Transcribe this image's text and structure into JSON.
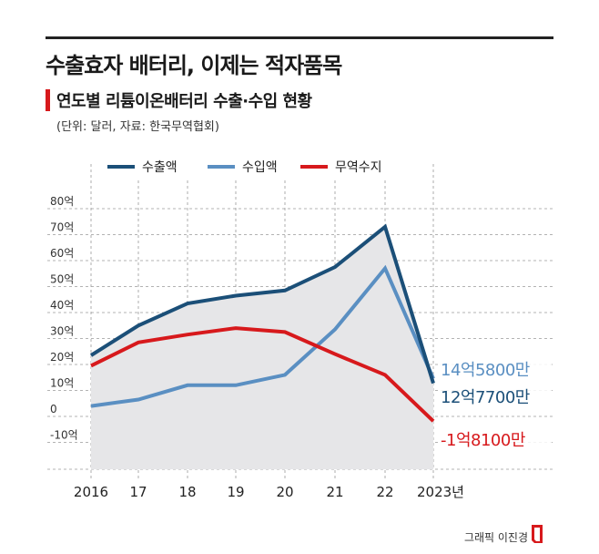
{
  "header": {
    "title": "수출효자 배터리, 이제는 적자품목",
    "subtitle": "연도별 리튬이온배터리 수출·수입 현황",
    "source": "(단위: 달러, 자료: 한국무역협회)"
  },
  "credit": "그래픽 이진경",
  "colors": {
    "export": "#1b4f78",
    "import": "#5a8fc2",
    "balance": "#d7191c",
    "fill": "#e6e6e8"
  },
  "chart_data": {
    "type": "line",
    "title": "연도별 리튬이온배터리 수출·수입 현황",
    "unit": "억 달러",
    "categories": [
      "2016",
      "17",
      "18",
      "19",
      "20",
      "21",
      "22",
      "2023년"
    ],
    "ylim": [
      -10,
      80
    ],
    "yticks": [
      -10,
      0,
      10,
      20,
      30,
      40,
      50,
      60,
      70,
      80
    ],
    "ytick_labels": [
      "-10억",
      "0",
      "10억",
      "20억",
      "30억",
      "40억",
      "50억",
      "60억",
      "70억",
      "80억"
    ],
    "legend_position": "top",
    "series": [
      {
        "name": "수출액",
        "color": "#1b4f78",
        "values": [
          23.5,
          35,
          43.5,
          46.5,
          48.5,
          57.5,
          73,
          12.77
        ]
      },
      {
        "name": "수입액",
        "color": "#5a8fc2",
        "values": [
          4,
          6.5,
          12,
          12,
          16,
          33.5,
          57,
          14.58
        ]
      },
      {
        "name": "무역수지",
        "color": "#d7191c",
        "values": [
          19.5,
          28.5,
          31.5,
          34,
          32.5,
          24,
          16,
          -1.81
        ]
      }
    ],
    "end_labels": [
      {
        "series": "수입액",
        "text": "14억5800만",
        "color": "#5a8fc2"
      },
      {
        "series": "수출액",
        "text": "12억7700만",
        "color": "#1b4f78"
      },
      {
        "series": "무역수지",
        "text": "-1억8100만",
        "color": "#d7191c"
      }
    ]
  }
}
